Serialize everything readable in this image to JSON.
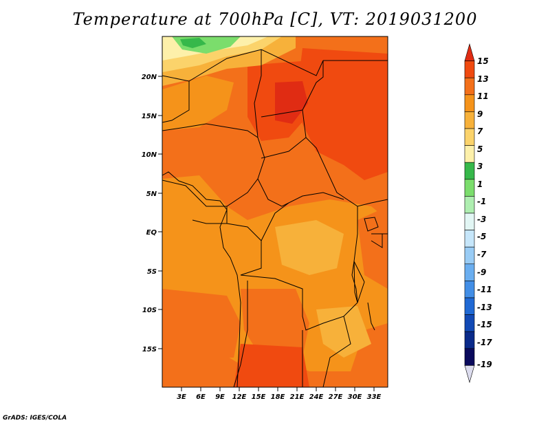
{
  "title": "Temperature at 700hPa [C], VT: 2019031200",
  "credit": "GrADS: IGES/COLA",
  "lat_labels": [
    "20N",
    "15N",
    "10N",
    "5N",
    "EQ",
    "5S",
    "10S",
    "15S"
  ],
  "lon_labels": [
    "3E",
    "6E",
    "9E",
    "12E",
    "15E",
    "18E",
    "21E",
    "24E",
    "27E",
    "30E",
    "33E"
  ],
  "colorbar": {
    "labels": [
      "15",
      "13",
      "11",
      "9",
      "7",
      "5",
      "3",
      "1",
      "-1",
      "-3",
      "-5",
      "-7",
      "-9",
      "-11",
      "-13",
      "-15",
      "-17",
      "-19"
    ],
    "colors": [
      "#e02c13",
      "#f04a10",
      "#f3701a",
      "#f5931a",
      "#f7b13a",
      "#fbd36b",
      "#fdf0aa",
      "#36b84a",
      "#7bdd6c",
      "#aeeeb0",
      "#e2f6f4",
      "#c6e6fa",
      "#99ccf5",
      "#6aaef0",
      "#428ee6",
      "#2069d4",
      "#1149b5",
      "#0a2a8a",
      "#0a0a5c",
      "#dcdcee"
    ]
  }
}
